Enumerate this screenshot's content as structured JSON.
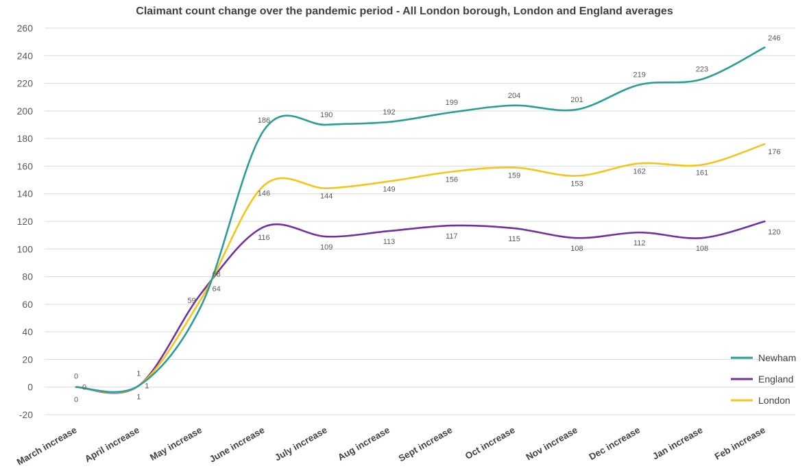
{
  "chart_data": {
    "type": "line",
    "title": "Claimant count change over the pandemic period  - All London borough, London and England averages",
    "xlabel": "",
    "ylabel": "",
    "ylim": [
      -20,
      260
    ],
    "yticks": [
      -20,
      0,
      20,
      40,
      60,
      80,
      100,
      120,
      140,
      160,
      180,
      200,
      220,
      240,
      260
    ],
    "grid": true,
    "legend_position": "bottom-right",
    "categories": [
      "March increase",
      "April increase",
      "May increase",
      "June increase",
      "July increase",
      "Aug increase",
      "Sept increase",
      "Oct increase",
      "Nov increase",
      "Dec increase",
      "Jan increase",
      "Feb increase"
    ],
    "series": [
      {
        "name": "Newham",
        "color": "#2a9d96",
        "values": [
          0,
          1,
          59,
          186,
          190,
          192,
          199,
          204,
          201,
          219,
          223,
          246
        ]
      },
      {
        "name": "England",
        "color": "#7030a0",
        "values": [
          0,
          1,
          68,
          116,
          109,
          113,
          117,
          115,
          108,
          112,
          108,
          120
        ]
      },
      {
        "name": "London",
        "color": "#f5c518",
        "values": [
          0,
          1,
          64,
          146,
          144,
          149,
          156,
          159,
          153,
          162,
          161,
          176
        ]
      }
    ]
  }
}
